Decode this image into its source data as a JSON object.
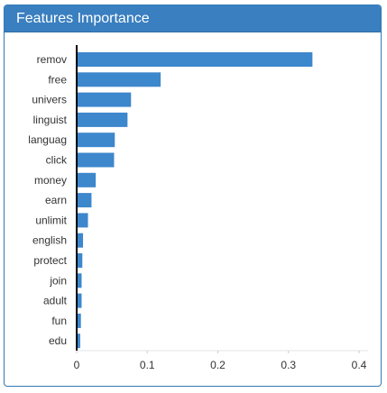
{
  "panel": {
    "title": "Features Importance"
  },
  "colors": {
    "header": "#3a7fc0",
    "bar": "#3d87cd",
    "axis": "#000000",
    "grid": "#e6e6e6"
  },
  "chart_data": {
    "type": "bar",
    "orientation": "horizontal",
    "title": "",
    "xlabel": "",
    "ylabel": "",
    "categories": [
      "remov",
      "free",
      "univers",
      "linguist",
      "languag",
      "click",
      "money",
      "earn",
      "unlimit",
      "english",
      "protect",
      "join",
      "adult",
      "fun",
      "edu"
    ],
    "values": [
      0.334,
      0.119,
      0.077,
      0.072,
      0.054,
      0.053,
      0.027,
      0.021,
      0.016,
      0.009,
      0.008,
      0.007,
      0.007,
      0.006,
      0.005
    ],
    "xlim": [
      0,
      0.4
    ],
    "xticks": [
      "0",
      "0.1",
      "0.2",
      "0.3",
      "0.4"
    ],
    "grid": false
  }
}
